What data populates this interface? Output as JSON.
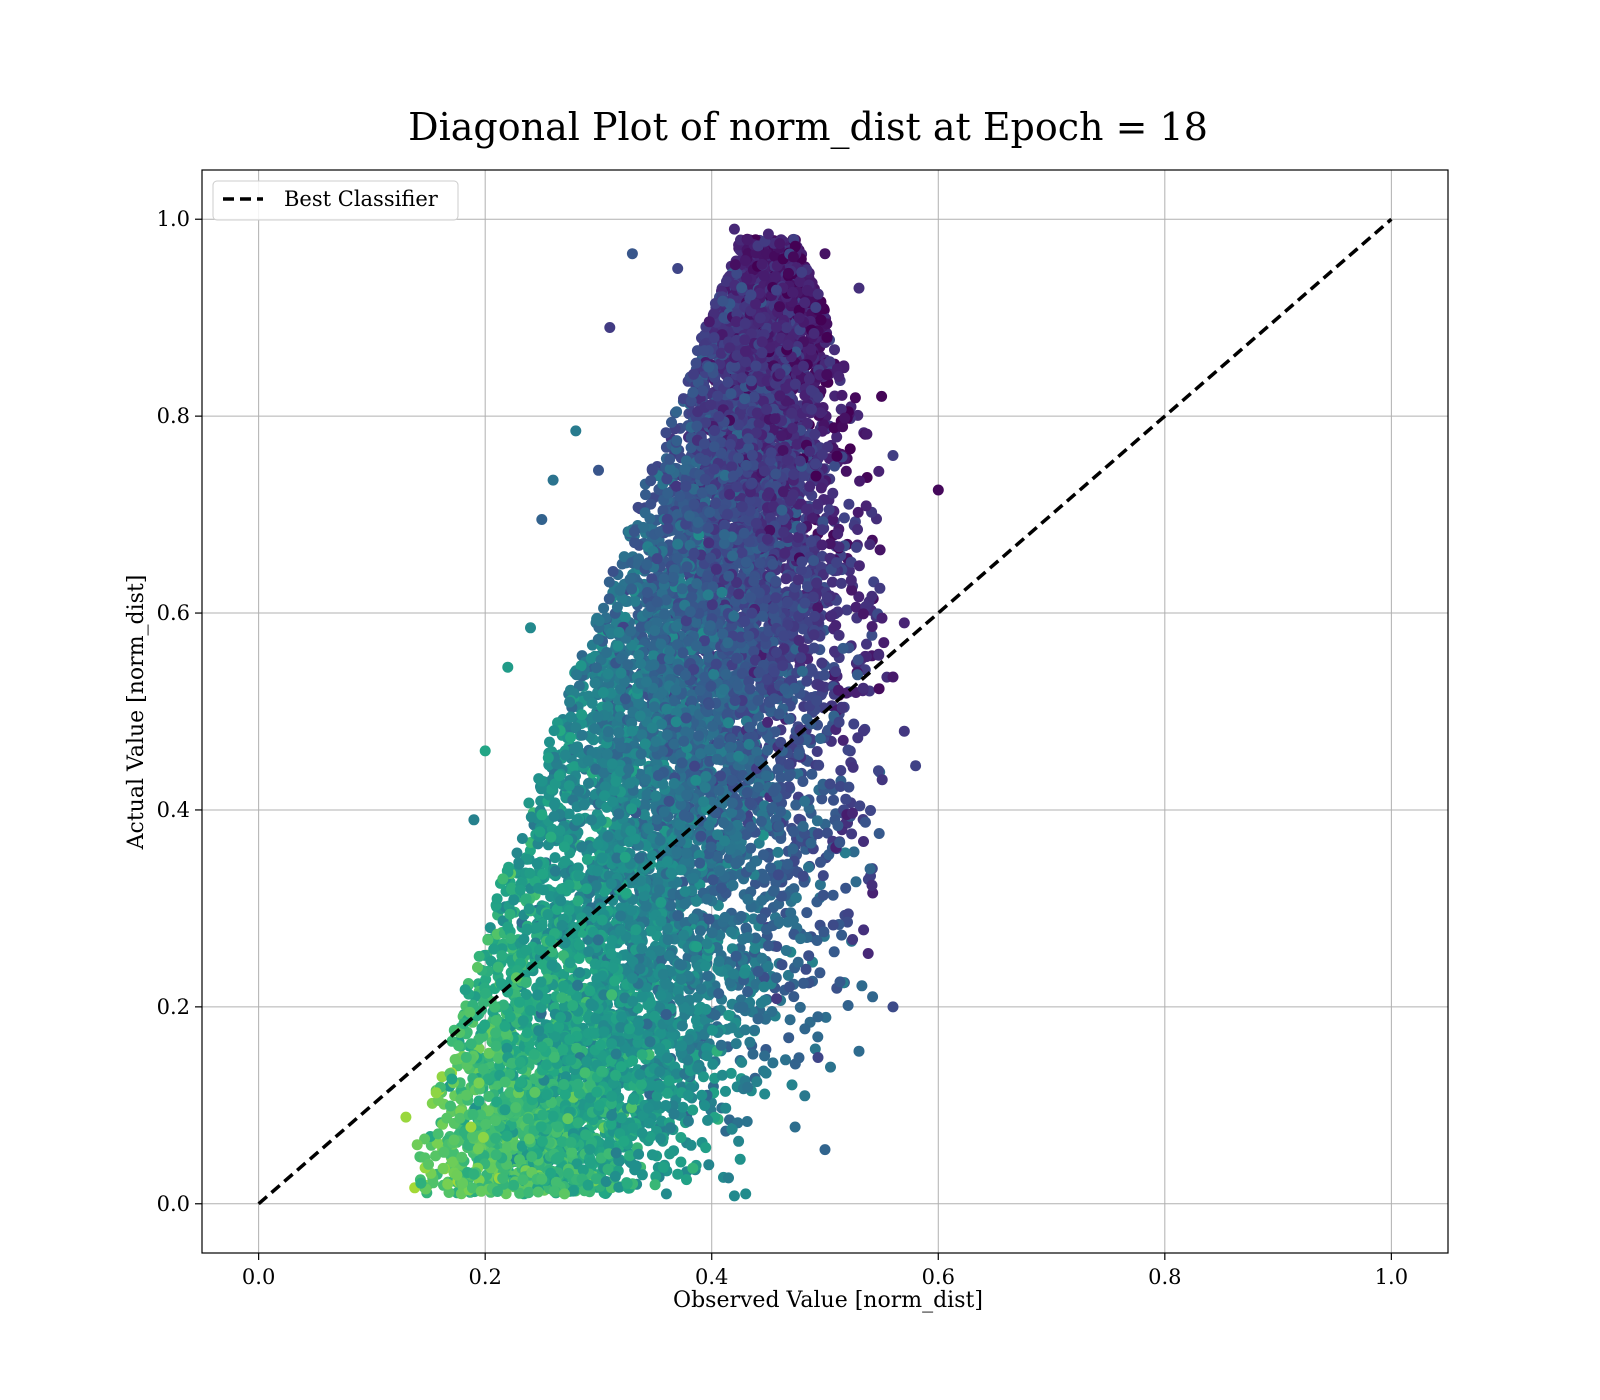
{
  "chart_data": {
    "type": "scatter",
    "title": "Diagonal Plot of norm_dist at Epoch = 18",
    "xlabel": "Observed Value [norm_dist]",
    "ylabel": "Actual Value [norm_dist]",
    "xlim": [
      -0.05,
      1.05
    ],
    "ylim": [
      -0.05,
      1.05
    ],
    "xticks": [
      "0.0",
      "0.2",
      "0.4",
      "0.6",
      "0.8",
      "1.0"
    ],
    "yticks": [
      "0.0",
      "0.2",
      "0.4",
      "0.6",
      "0.8",
      "1.0"
    ],
    "xtick_values": [
      0.0,
      0.2,
      0.4,
      0.6,
      0.8,
      1.0
    ],
    "ytick_values": [
      0.0,
      0.2,
      0.4,
      0.6,
      0.8,
      1.0
    ],
    "grid": true,
    "colormap": "viridis",
    "legend": {
      "position": "top-left",
      "entries": [
        "Best Classifier"
      ]
    },
    "reference_line": {
      "name": "Best Classifier",
      "style": "dashed",
      "color": "#000000",
      "x": [
        0,
        1
      ],
      "y": [
        0,
        1
      ]
    },
    "scatter_points": [
      {
        "x": 0.42,
        "y": 0.99
      },
      {
        "x": 0.45,
        "y": 0.985
      },
      {
        "x": 0.5,
        "y": 0.965
      },
      {
        "x": 0.33,
        "y": 0.965
      },
      {
        "x": 0.37,
        "y": 0.95
      },
      {
        "x": 0.53,
        "y": 0.93
      },
      {
        "x": 0.31,
        "y": 0.89
      },
      {
        "x": 0.55,
        "y": 0.82
      },
      {
        "x": 0.28,
        "y": 0.785
      },
      {
        "x": 0.3,
        "y": 0.745
      },
      {
        "x": 0.56,
        "y": 0.76
      },
      {
        "x": 0.6,
        "y": 0.725
      },
      {
        "x": 0.26,
        "y": 0.735
      },
      {
        "x": 0.25,
        "y": 0.695
      },
      {
        "x": 0.57,
        "y": 0.59
      },
      {
        "x": 0.22,
        "y": 0.545
      },
      {
        "x": 0.24,
        "y": 0.585
      },
      {
        "x": 0.56,
        "y": 0.535
      },
      {
        "x": 0.57,
        "y": 0.48
      },
      {
        "x": 0.58,
        "y": 0.445
      },
      {
        "x": 0.2,
        "y": 0.46
      },
      {
        "x": 0.19,
        "y": 0.39
      },
      {
        "x": 0.56,
        "y": 0.2
      },
      {
        "x": 0.53,
        "y": 0.155
      },
      {
        "x": 0.13,
        "y": 0.088
      },
      {
        "x": 0.14,
        "y": 0.06
      },
      {
        "x": 0.15,
        "y": 0.04
      },
      {
        "x": 0.19,
        "y": 0.03
      },
      {
        "x": 0.25,
        "y": 0.025
      },
      {
        "x": 0.27,
        "y": 0.01
      },
      {
        "x": 0.36,
        "y": 0.01
      },
      {
        "x": 0.42,
        "y": 0.008
      },
      {
        "x": 0.43,
        "y": 0.01
      },
      {
        "x": 0.37,
        "y": 0.03
      },
      {
        "x": 0.5,
        "y": 0.055
      }
    ]
  }
}
